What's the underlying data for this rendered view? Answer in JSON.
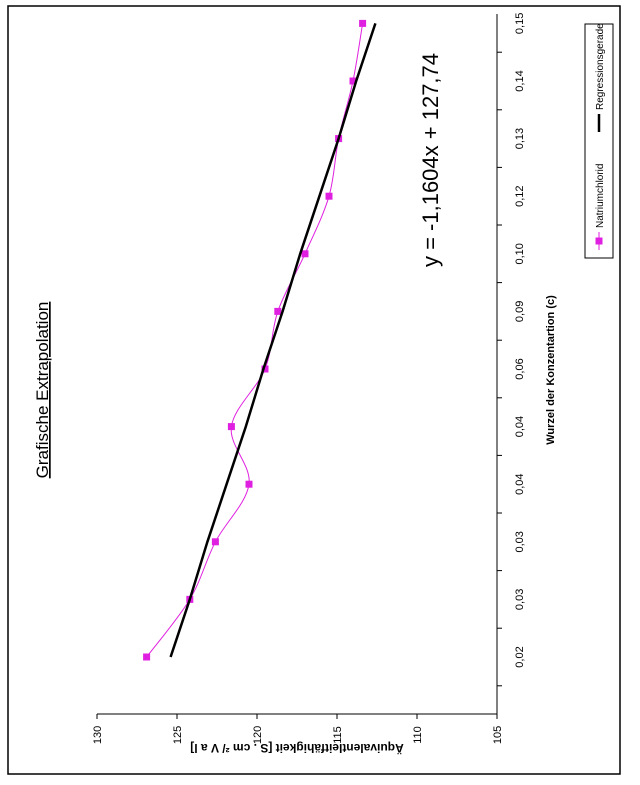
{
  "chart_data": {
    "type": "line",
    "title": "Grafische Extrapolation",
    "annotation": "y = -1,1604x + 127,74",
    "x_label": "Wurzel der Konzentartion (c)",
    "y_label": "Äquivalentleitfähigkeit [S . cm ²/ V a l]",
    "categories": [
      "0,02",
      "0,03",
      "0,03",
      "0,04",
      "0,04",
      "0,06",
      "0,09",
      "0,10",
      "0,12",
      "0,13",
      "0,14",
      "0,15"
    ],
    "series": [
      {
        "name": "Natriumchlorid",
        "color": "#e020e0",
        "smooth": true,
        "marker": true,
        "values": [
          126.9,
          124.2,
          122.6,
          120.5,
          121.6,
          119.5,
          118.7,
          117.0,
          115.5,
          114.9,
          114.0,
          113.4
        ]
      },
      {
        "name": "Regressionsgerade",
        "color": "#000000",
        "smooth": false,
        "marker": false,
        "values": [
          125.4,
          124.2,
          123.1,
          121.9,
          120.7,
          119.6,
          118.4,
          117.3,
          116.1,
          114.9,
          113.8,
          112.6
        ]
      }
    ],
    "ylim": [
      105,
      130
    ],
    "yticks": [
      105,
      110,
      115,
      120,
      125,
      130
    ]
  }
}
